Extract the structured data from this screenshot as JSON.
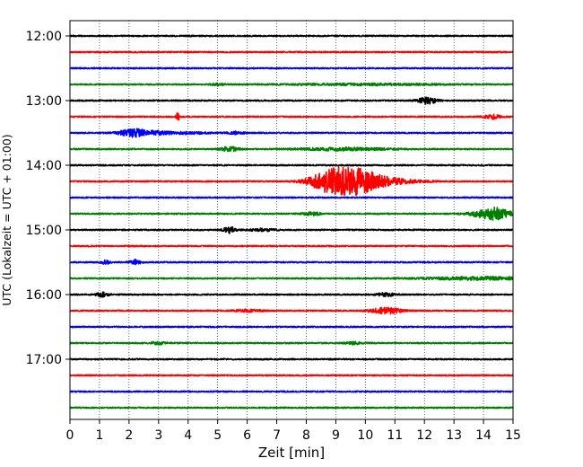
{
  "chart_data": {
    "type": "line",
    "title": "",
    "xlabel": "Zeit  [min]",
    "ylabel": "UTC (Lokalzeit = UTC + 01:00)",
    "xlim": [
      0,
      15
    ],
    "x_ticks": [
      "0",
      "1",
      "2",
      "3",
      "4",
      "5",
      "6",
      "7",
      "8",
      "9",
      "10",
      "11",
      "12",
      "13",
      "14",
      "15"
    ],
    "y_ticks": [
      {
        "label": "12:00",
        "trace": 0
      },
      {
        "label": "13:00",
        "trace": 4
      },
      {
        "label": "14:00",
        "trace": 8
      },
      {
        "label": "15:00",
        "trace": 12
      },
      {
        "label": "16:00",
        "trace": 16
      },
      {
        "label": "17:00",
        "trace": 20
      }
    ],
    "grid": "vertical dotted",
    "trace_interval_minutes": 15,
    "trace_colors": [
      "#000000",
      "#ff0000",
      "#0000ff",
      "#008000"
    ],
    "series": [
      {
        "start": "12:00",
        "color": "#000000",
        "events": []
      },
      {
        "start": "12:15",
        "color": "#ff0000",
        "events": []
      },
      {
        "start": "12:30",
        "color": "#0000ff",
        "events": []
      },
      {
        "start": "12:45",
        "color": "#008000",
        "events": [
          {
            "t": 5.0,
            "amp": 0.3,
            "dur": 0.2
          },
          {
            "t": 10.0,
            "amp": 0.2,
            "dur": 2.5
          }
        ]
      },
      {
        "start": "13:00",
        "color": "#000000",
        "events": [
          {
            "t": 12.1,
            "amp": 0.9,
            "dur": 0.3
          }
        ]
      },
      {
        "start": "13:15",
        "color": "#ff0000",
        "events": [
          {
            "t": 3.65,
            "amp": 1.6,
            "dur": 0.05
          },
          {
            "t": 14.3,
            "amp": 0.5,
            "dur": 0.3
          }
        ]
      },
      {
        "start": "13:30",
        "color": "#0000ff",
        "events": [
          {
            "t": 2.15,
            "amp": 1.0,
            "dur": 0.5
          },
          {
            "t": 3.0,
            "amp": 0.4,
            "dur": 0.5
          },
          {
            "t": 4.1,
            "amp": 0.25,
            "dur": 0.6
          },
          {
            "t": 5.6,
            "amp": 0.3,
            "dur": 0.3
          }
        ]
      },
      {
        "start": "13:45",
        "color": "#008000",
        "events": [
          {
            "t": 5.4,
            "amp": 0.6,
            "dur": 0.3
          },
          {
            "t": 9.3,
            "amp": 0.35,
            "dur": 1.5
          }
        ]
      },
      {
        "start": "14:00",
        "color": "#000000",
        "events": []
      },
      {
        "start": "14:15",
        "color": "#ff0000",
        "events": [
          {
            "t": 8.6,
            "amp": 1.2,
            "dur": 0.6
          },
          {
            "t": 9.45,
            "amp": 3.4,
            "dur": 0.9
          },
          {
            "t": 10.5,
            "amp": 0.8,
            "dur": 1.2
          }
        ]
      },
      {
        "start": "14:30",
        "color": "#0000ff",
        "events": []
      },
      {
        "start": "14:45",
        "color": "#008000",
        "events": [
          {
            "t": 8.2,
            "amp": 0.4,
            "dur": 0.3
          },
          {
            "t": 14.3,
            "amp": 1.6,
            "dur": 0.6
          }
        ]
      },
      {
        "start": "15:00",
        "color": "#000000",
        "events": [
          {
            "t": 5.4,
            "amp": 0.8,
            "dur": 0.2
          },
          {
            "t": 6.5,
            "amp": 0.35,
            "dur": 0.4
          }
        ]
      },
      {
        "start": "15:15",
        "color": "#ff0000",
        "events": []
      },
      {
        "start": "15:30",
        "color": "#0000ff",
        "events": [
          {
            "t": 1.2,
            "amp": 0.5,
            "dur": 0.15
          },
          {
            "t": 2.2,
            "amp": 0.6,
            "dur": 0.2
          }
        ]
      },
      {
        "start": "15:45",
        "color": "#008000",
        "events": [
          {
            "t": 14.0,
            "amp": 0.35,
            "dur": 2.0
          }
        ]
      },
      {
        "start": "16:00",
        "color": "#000000",
        "events": [
          {
            "t": 1.1,
            "amp": 0.6,
            "dur": 0.2
          },
          {
            "t": 10.7,
            "amp": 0.4,
            "dur": 0.3
          }
        ]
      },
      {
        "start": "16:15",
        "color": "#ff0000",
        "events": [
          {
            "t": 6.0,
            "amp": 0.3,
            "dur": 0.5
          },
          {
            "t": 10.7,
            "amp": 0.8,
            "dur": 0.5
          }
        ]
      },
      {
        "start": "16:30",
        "color": "#0000ff",
        "events": []
      },
      {
        "start": "16:45",
        "color": "#008000",
        "events": [
          {
            "t": 3.0,
            "amp": 0.3,
            "dur": 0.3
          },
          {
            "t": 9.6,
            "amp": 0.3,
            "dur": 0.3
          }
        ]
      },
      {
        "start": "17:00",
        "color": "#000000",
        "events": []
      },
      {
        "start": "17:15",
        "color": "#ff0000",
        "events": []
      },
      {
        "start": "17:30",
        "color": "#0000ff",
        "events": []
      },
      {
        "start": "17:45",
        "color": "#008000",
        "events": []
      }
    ]
  }
}
